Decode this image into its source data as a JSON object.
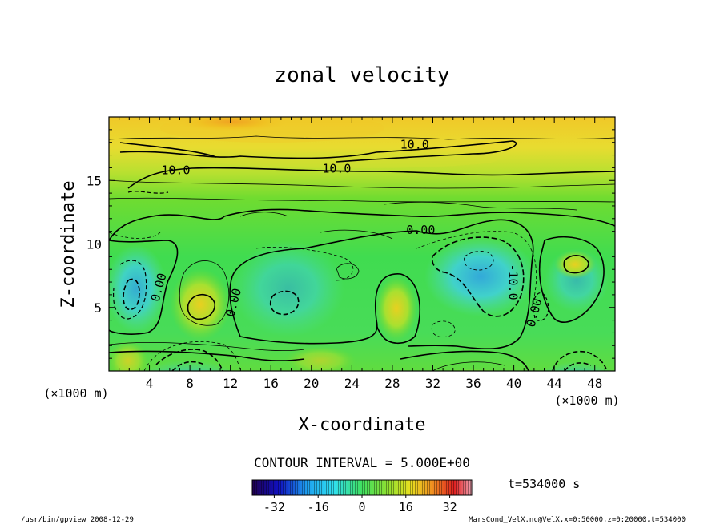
{
  "chart_data": {
    "type": "heatmap",
    "title": "zonal velocity",
    "xlabel": "X-coordinate",
    "ylabel": "Z-coordinate",
    "x_unit": "(×1000 m)",
    "z_unit": "(×1000 m)",
    "xlim": [
      0,
      50
    ],
    "ylim": [
      0,
      20
    ],
    "x_ticks": [
      4,
      8,
      12,
      16,
      20,
      24,
      28,
      32,
      36,
      40,
      44,
      48
    ],
    "y_ticks": [
      5,
      10,
      15
    ],
    "contour_interval_label": "CONTOUR INTERVAL = 5.000E+00",
    "time_label": "t=534000 s",
    "colorbar": {
      "range": [
        -40,
        40
      ],
      "ticks": [
        -32,
        -16,
        0,
        16,
        32
      ],
      "colors": [
        "#200050",
        "#1010c0",
        "#1ea0f0",
        "#30e0f0",
        "#40e060",
        "#90e030",
        "#e8e020",
        "#f09020",
        "#e02020",
        "#f0a0b0"
      ]
    },
    "contour_labels": [
      {
        "text": "10.0",
        "x": 22.5,
        "z": 15.6
      },
      {
        "text": "10.0",
        "x": 30.2,
        "z": 17.5
      },
      {
        "text": "10.0",
        "x": 6.6,
        "z": 15.5
      },
      {
        "text": "0.00",
        "x": 30.8,
        "z": 10.8
      },
      {
        "text": "0.00",
        "x": 5.3,
        "z": 6.5
      },
      {
        "text": "0.00",
        "x": 12.7,
        "z": 5.3
      },
      {
        "text": "0.00",
        "x": 42.4,
        "z": 4.5
      },
      {
        "text": "-10.0",
        "x": 39.5,
        "z": 7.0
      }
    ]
  },
  "footer": {
    "left": "/usr/bin/gpview   2008-12-29",
    "right": "MarsCond_VelX.nc@VelX,x=0:50000,z=0:20000,t=534000"
  }
}
